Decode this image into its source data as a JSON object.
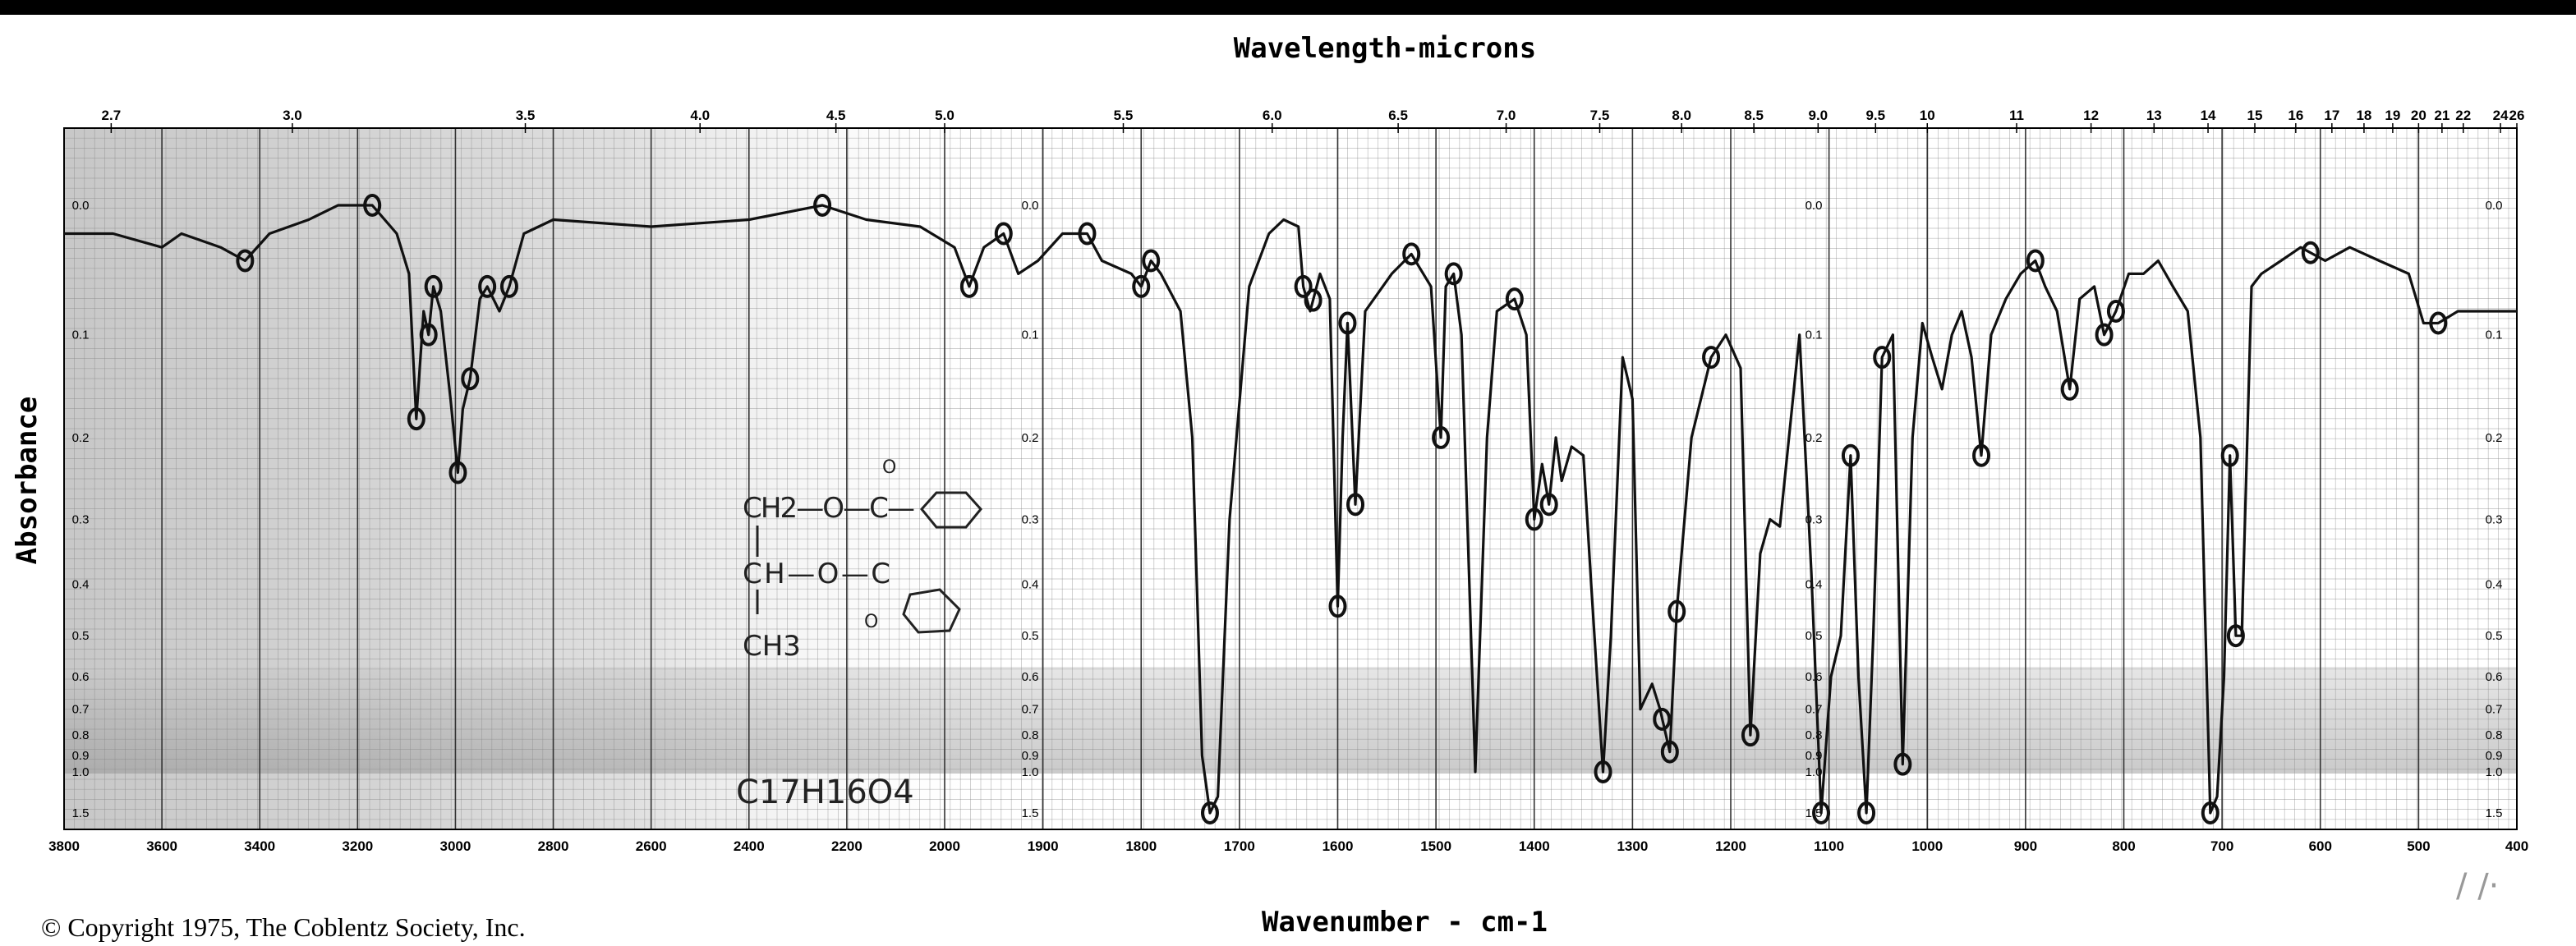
{
  "chart_data": {
    "type": "line",
    "title": "Wavelength-microns",
    "xlabel": "Wavenumber - cm-1",
    "ylabel": "Absorbance",
    "copyright": "© Copyright 1975, The Coblentz Society, Inc.",
    "formula": "C17H16O4",
    "structure": {
      "row1": "CH2—O—C—",
      "row1_carbonyl": "O",
      "row2": "CH—O—C",
      "row2_carbonyl": "O",
      "row3": "CH3"
    },
    "wavenumber_ticks": [
      "3800",
      "3600",
      "3400",
      "3200",
      "3000",
      "2800",
      "2600",
      "2400",
      "2200",
      "2000",
      "1900",
      "1800",
      "1700",
      "1600",
      "1500",
      "1400",
      "1300",
      "1200",
      "1100",
      "1000",
      "900",
      "800",
      "700",
      "600",
      "500",
      "400"
    ],
    "wavelength_ticks": [
      "2.7",
      "3.0",
      "3.5",
      "4.0",
      "4.5",
      "5.0",
      "5.5",
      "6.0",
      "6.5",
      "7.0",
      "7.5",
      "8.0",
      "8.5",
      "9.0",
      "9.5",
      "10",
      "11",
      "12",
      "13",
      "14",
      "15",
      "16",
      "17",
      "18",
      "19",
      "20",
      "21",
      "22",
      "24",
      "26"
    ],
    "absorbance_ticks": [
      "0.0",
      "0.1",
      "0.2",
      "0.3",
      "0.4",
      "0.5",
      "0.6",
      "0.7",
      "0.8",
      "0.9",
      "1.0",
      "1.5"
    ],
    "xlim": [
      3800,
      400
    ],
    "series": [
      {
        "points": [
          [
            3800,
            0.02
          ],
          [
            3700,
            0.02
          ],
          [
            3600,
            0.03
          ],
          [
            3560,
            0.02
          ],
          [
            3480,
            0.03
          ],
          [
            3430,
            0.04
          ],
          [
            3380,
            0.02
          ],
          [
            3300,
            0.01
          ],
          [
            3240,
            0.0
          ],
          [
            3170,
            0.0
          ],
          [
            3120,
            0.02
          ],
          [
            3095,
            0.05
          ],
          [
            3080,
            0.18
          ],
          [
            3065,
            0.08
          ],
          [
            3055,
            0.1
          ],
          [
            3045,
            0.06
          ],
          [
            3030,
            0.08
          ],
          [
            3010,
            0.16
          ],
          [
            2995,
            0.24
          ],
          [
            2985,
            0.17
          ],
          [
            2970,
            0.14
          ],
          [
            2950,
            0.07
          ],
          [
            2935,
            0.06
          ],
          [
            2910,
            0.08
          ],
          [
            2890,
            0.06
          ],
          [
            2860,
            0.02
          ],
          [
            2800,
            0.01
          ],
          [
            2600,
            0.015
          ],
          [
            2400,
            0.01
          ],
          [
            2250,
            0.0
          ],
          [
            2160,
            0.01
          ],
          [
            2050,
            0.015
          ],
          [
            1990,
            0.03
          ],
          [
            1975,
            0.06
          ],
          [
            1960,
            0.03
          ],
          [
            1940,
            0.02
          ],
          [
            1925,
            0.05
          ],
          [
            1905,
            0.04
          ],
          [
            1880,
            0.02
          ],
          [
            1855,
            0.02
          ],
          [
            1840,
            0.04
          ],
          [
            1810,
            0.05
          ],
          [
            1800,
            0.06
          ],
          [
            1790,
            0.04
          ],
          [
            1780,
            0.05
          ],
          [
            1760,
            0.08
          ],
          [
            1748,
            0.2
          ],
          [
            1738,
            0.9
          ],
          [
            1730,
            1.5
          ],
          [
            1722,
            1.3
          ],
          [
            1710,
            0.3
          ],
          [
            1690,
            0.06
          ],
          [
            1670,
            0.02
          ],
          [
            1655,
            0.01
          ],
          [
            1640,
            0.015
          ],
          [
            1635,
            0.06
          ],
          [
            1628,
            0.08
          ],
          [
            1618,
            0.05
          ],
          [
            1608,
            0.07
          ],
          [
            1600,
            0.44
          ],
          [
            1595,
            0.2
          ],
          [
            1590,
            0.09
          ],
          [
            1582,
            0.28
          ],
          [
            1572,
            0.08
          ],
          [
            1545,
            0.05
          ],
          [
            1525,
            0.035
          ],
          [
            1505,
            0.06
          ],
          [
            1495,
            0.2
          ],
          [
            1490,
            0.06
          ],
          [
            1482,
            0.05
          ],
          [
            1474,
            0.1
          ],
          [
            1460,
            1.0
          ],
          [
            1448,
            0.2
          ],
          [
            1438,
            0.08
          ],
          [
            1420,
            0.07
          ],
          [
            1408,
            0.1
          ],
          [
            1400,
            0.3
          ],
          [
            1392,
            0.23
          ],
          [
            1385,
            0.28
          ],
          [
            1378,
            0.2
          ],
          [
            1372,
            0.25
          ],
          [
            1362,
            0.21
          ],
          [
            1350,
            0.22
          ],
          [
            1342,
            0.4
          ],
          [
            1330,
            1.0
          ],
          [
            1322,
            0.5
          ],
          [
            1310,
            0.12
          ],
          [
            1300,
            0.16
          ],
          [
            1292,
            0.7
          ],
          [
            1280,
            0.62
          ],
          [
            1272,
            0.7
          ],
          [
            1262,
            0.88
          ],
          [
            1255,
            0.45
          ],
          [
            1240,
            0.2
          ],
          [
            1220,
            0.12
          ],
          [
            1205,
            0.1
          ],
          [
            1190,
            0.13
          ],
          [
            1180,
            0.8
          ],
          [
            1170,
            0.35
          ],
          [
            1160,
            0.3
          ],
          [
            1150,
            0.31
          ],
          [
            1130,
            0.1
          ],
          [
            1118,
            0.38
          ],
          [
            1108,
            1.5
          ],
          [
            1098,
            0.6
          ],
          [
            1088,
            0.5
          ],
          [
            1078,
            0.22
          ],
          [
            1070,
            0.6
          ],
          [
            1062,
            1.5
          ],
          [
            1055,
            0.5
          ],
          [
            1046,
            0.12
          ],
          [
            1035,
            0.1
          ],
          [
            1025,
            0.95
          ],
          [
            1015,
            0.2
          ],
          [
            1005,
            0.09
          ],
          [
            995,
            0.12
          ],
          [
            985,
            0.15
          ],
          [
            975,
            0.1
          ],
          [
            965,
            0.08
          ],
          [
            955,
            0.12
          ],
          [
            945,
            0.22
          ],
          [
            935,
            0.1
          ],
          [
            920,
            0.07
          ],
          [
            905,
            0.05
          ],
          [
            890,
            0.04
          ],
          [
            880,
            0.06
          ],
          [
            868,
            0.08
          ],
          [
            855,
            0.15
          ],
          [
            845,
            0.07
          ],
          [
            830,
            0.06
          ],
          [
            820,
            0.1
          ],
          [
            808,
            0.08
          ],
          [
            795,
            0.05
          ],
          [
            780,
            0.05
          ],
          [
            765,
            0.04
          ],
          [
            750,
            0.06
          ],
          [
            735,
            0.08
          ],
          [
            722,
            0.2
          ],
          [
            712,
            1.5
          ],
          [
            705,
            1.3
          ],
          [
            698,
            0.6
          ],
          [
            692,
            0.22
          ],
          [
            686,
            0.5
          ],
          [
            680,
            0.5
          ],
          [
            670,
            0.06
          ],
          [
            660,
            0.05
          ],
          [
            640,
            0.04
          ],
          [
            620,
            0.03
          ],
          [
            595,
            0.04
          ],
          [
            570,
            0.03
          ],
          [
            540,
            0.04
          ],
          [
            510,
            0.05
          ],
          [
            495,
            0.09
          ],
          [
            480,
            0.09
          ],
          [
            460,
            0.08
          ],
          [
            440,
            0.08
          ],
          [
            400,
            0.08
          ]
        ]
      }
    ],
    "marked_peaks": [
      3430,
      3170,
      3080,
      3055,
      3045,
      2995,
      2970,
      2935,
      2890,
      2250,
      1975,
      1940,
      1855,
      1800,
      1790,
      1730,
      1635,
      1625,
      1600,
      1590,
      1582,
      1525,
      1495,
      1482,
      1420,
      1400,
      1385,
      1330,
      1270,
      1262,
      1255,
      1220,
      1180,
      1108,
      1078,
      1062,
      1046,
      1025,
      945,
      890,
      855,
      820,
      808,
      712,
      692,
      686,
      610,
      480
    ]
  }
}
